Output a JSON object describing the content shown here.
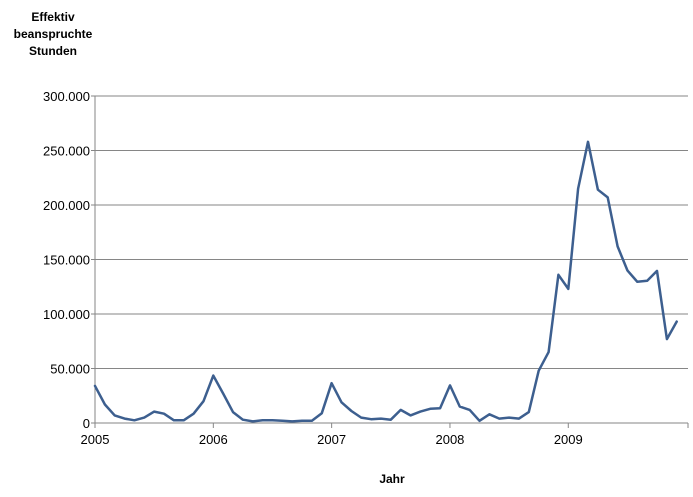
{
  "chart_data": {
    "type": "line",
    "title": "",
    "ylabel_lines": [
      "Effektiv",
      "beanspruchte",
      "Stunden"
    ],
    "xlabel": "Jahr",
    "ylim": [
      0,
      300000
    ],
    "yticks": [
      0,
      50000,
      100000,
      150000,
      200000,
      250000,
      300000
    ],
    "ytick_labels": [
      "0",
      "50.000",
      "100.000",
      "150.000",
      "200.000",
      "250.000",
      "300.000"
    ],
    "xticks": [
      {
        "label": "2005",
        "month_index": 0
      },
      {
        "label": "2006",
        "month_index": 12
      },
      {
        "label": "2007",
        "month_index": 24
      },
      {
        "label": "2008",
        "month_index": 36
      },
      {
        "label": "2009",
        "month_index": 48
      }
    ],
    "grid": "horizontal",
    "legend": "none",
    "colors": {
      "line": "#3d5f8f",
      "grid": "#868686",
      "axis": "#868686"
    },
    "series": [
      {
        "values": [
          34000,
          17000,
          7000,
          4000,
          2500,
          5000,
          10500,
          8500,
          2500,
          2500,
          8500,
          20000,
          43500,
          27000,
          10000,
          3000,
          1500,
          2500,
          2500,
          2000,
          1500,
          2000,
          2000,
          9000,
          36500,
          19000,
          11000,
          5000,
          3500,
          4000,
          3000,
          12000,
          7000,
          10500,
          13000,
          13500,
          34500,
          15000,
          12000,
          2000,
          8000,
          4000,
          5000,
          4000,
          10000,
          48000,
          65000,
          136000,
          123000,
          215000,
          258000,
          214000,
          207000,
          162000,
          140000,
          129500,
          130500,
          139500,
          77000,
          93000
        ]
      }
    ]
  }
}
